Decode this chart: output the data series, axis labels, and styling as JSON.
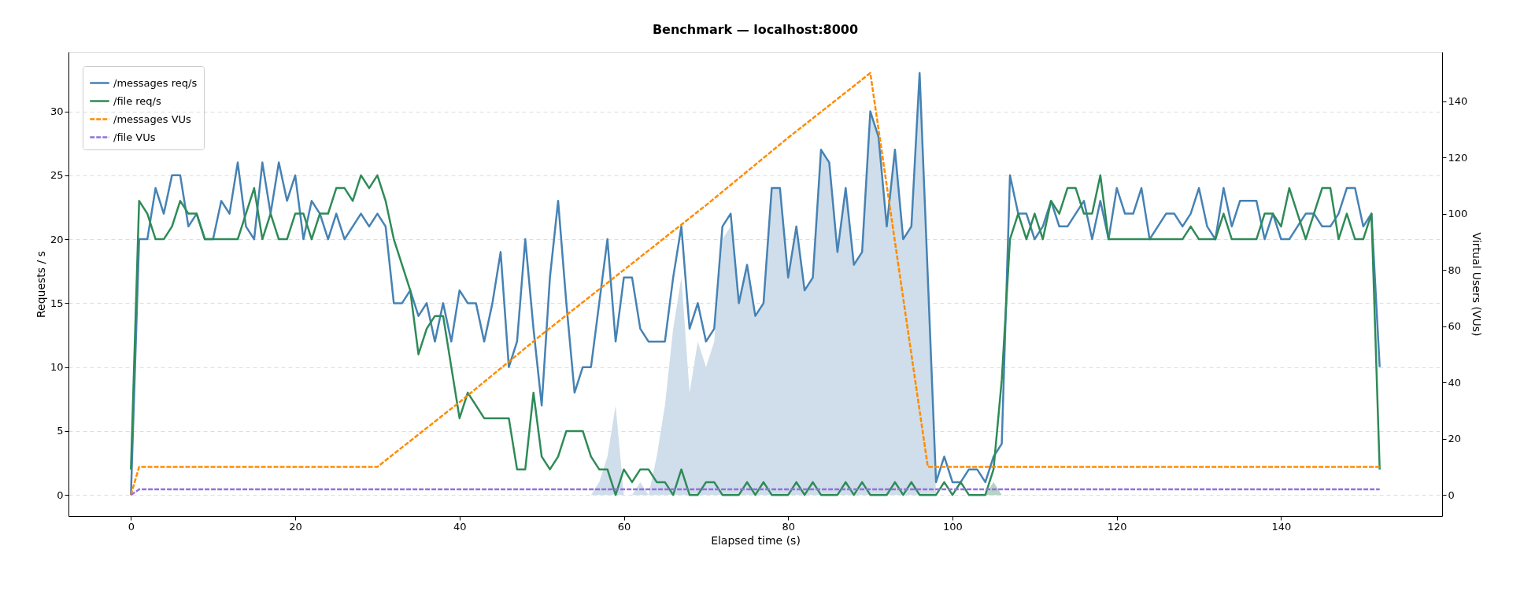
{
  "chart_data": {
    "type": "line",
    "title": "Benchmark — localhost:8000",
    "xlabel": "Elapsed time (s)",
    "ylabel": "Requests / s",
    "y2label": "Virtual Users (VUs)",
    "x": [
      0,
      1,
      2,
      3,
      4,
      5,
      6,
      7,
      8,
      9,
      10,
      11,
      12,
      13,
      14,
      15,
      16,
      17,
      18,
      19,
      20,
      21,
      22,
      23,
      24,
      25,
      26,
      27,
      28,
      29,
      30,
      31,
      32,
      33,
      34,
      35,
      36,
      37,
      38,
      39,
      40,
      41,
      42,
      43,
      44,
      45,
      46,
      47,
      48,
      49,
      50,
      51,
      52,
      53,
      54,
      55,
      56,
      57,
      58,
      59,
      60,
      61,
      62,
      63,
      64,
      65,
      66,
      67,
      68,
      69,
      70,
      71,
      72,
      73,
      74,
      75,
      76,
      77,
      78,
      79,
      80,
      81,
      82,
      83,
      84,
      85,
      86,
      87,
      88,
      89,
      90,
      91,
      92,
      93,
      94,
      95,
      96,
      97,
      98,
      99,
      100,
      101,
      102,
      103,
      104,
      105,
      106,
      107,
      108,
      109,
      110,
      111,
      112,
      113,
      114,
      115,
      116,
      117,
      118,
      119,
      120,
      121,
      122,
      123,
      124,
      125,
      126,
      127,
      128,
      129,
      130,
      131,
      132,
      133,
      134,
      135,
      136,
      137,
      138,
      139,
      140,
      141,
      142,
      143,
      144,
      145,
      146,
      147,
      148,
      149,
      150,
      151,
      152
    ],
    "series": [
      {
        "type": "area",
        "color": "#cfdeea",
        "x": [
          55,
          56,
          57,
          58,
          59,
          60,
          61,
          62,
          63,
          64,
          65,
          66,
          67,
          68,
          69,
          70,
          71,
          72,
          73,
          74,
          75,
          76,
          77,
          78,
          79,
          80,
          81,
          82,
          83,
          84,
          85,
          86,
          87,
          88,
          89,
          90,
          91,
          92,
          93,
          94,
          95,
          96,
          97,
          98,
          99,
          100,
          101,
          102,
          103,
          104,
          105,
          106
        ],
        "values": [
          0,
          0,
          1,
          3,
          7,
          0,
          0,
          1,
          0,
          3,
          7,
          13,
          17,
          8,
          12,
          10,
          12,
          20,
          21,
          15,
          18,
          14,
          15,
          24,
          24,
          17,
          21,
          16,
          17,
          27,
          26,
          19,
          24,
          18,
          19,
          30,
          28,
          21,
          27,
          20,
          21,
          33,
          17,
          0,
          0,
          0,
          0,
          0,
          0,
          0,
          1,
          0
        ]
      },
      {
        "type": "area",
        "color": "#b6d3c3",
        "x": [
          104,
          105,
          106
        ],
        "values": [
          0,
          1,
          0
        ]
      },
      {
        "name": "/messages req/s",
        "color": "#4682b4",
        "line_style": "solid",
        "values": [
          0,
          20,
          20,
          24,
          22,
          25,
          25,
          21,
          22,
          20,
          20,
          23,
          22,
          26,
          21,
          20,
          26,
          22,
          26,
          23,
          25,
          20,
          23,
          22,
          20,
          22,
          20,
          21,
          22,
          21,
          22,
          21,
          15,
          15,
          16,
          14,
          15,
          12,
          15,
          12,
          16,
          15,
          15,
          12,
          15,
          19,
          10,
          12,
          20,
          13,
          7,
          17,
          23,
          15,
          8,
          10,
          10,
          15,
          20,
          12,
          17,
          17,
          13,
          12,
          12,
          12,
          17,
          21,
          13,
          15,
          12,
          13,
          21,
          22,
          15,
          18,
          14,
          15,
          24,
          24,
          17,
          21,
          16,
          17,
          27,
          26,
          19,
          24,
          18,
          19,
          30,
          28,
          21,
          27,
          20,
          21,
          33,
          17,
          1,
          3,
          1,
          1,
          2,
          2,
          1,
          3,
          4,
          25,
          22,
          22,
          20,
          21,
          23,
          21,
          21,
          22,
          23,
          20,
          23,
          20,
          24,
          22,
          22,
          24,
          20,
          21,
          22,
          22,
          21,
          22,
          24,
          21,
          20,
          24,
          21,
          23,
          23,
          23,
          20,
          22,
          20,
          20,
          21,
          22,
          22,
          21,
          21,
          22,
          24,
          24,
          21,
          22,
          10
        ]
      },
      {
        "name": "/file req/s",
        "color": "#2e8b57",
        "line_style": "solid",
        "values": [
          2,
          23,
          22,
          20,
          20,
          21,
          23,
          22,
          22,
          20,
          20,
          20,
          20,
          20,
          22,
          24,
          20,
          22,
          20,
          20,
          22,
          22,
          20,
          22,
          22,
          24,
          24,
          23,
          25,
          24,
          25,
          23,
          20,
          18,
          16,
          11,
          13,
          14,
          14,
          10,
          6,
          8,
          7,
          6,
          6,
          6,
          6,
          2,
          2,
          8,
          3,
          2,
          3,
          5,
          5,
          5,
          3,
          2,
          2,
          0,
          2,
          1,
          2,
          2,
          1,
          1,
          0,
          2,
          0,
          0,
          1,
          1,
          0,
          0,
          0,
          1,
          0,
          1,
          0,
          0,
          0,
          1,
          0,
          1,
          0,
          0,
          0,
          1,
          0,
          1,
          0,
          0,
          0,
          1,
          0,
          1,
          0,
          0,
          0,
          1,
          0,
          1,
          0,
          0,
          0,
          2,
          9,
          20,
          22,
          20,
          22,
          20,
          23,
          22,
          24,
          24,
          22,
          22,
          25,
          20,
          20,
          20,
          20,
          20,
          20,
          20,
          20,
          20,
          20,
          21,
          20,
          20,
          20,
          22,
          20,
          20,
          20,
          20,
          22,
          22,
          21,
          24,
          22,
          20,
          22,
          24,
          24,
          20,
          22,
          20,
          20,
          22,
          2
        ]
      },
      {
        "name": "/messages VUs",
        "color": "#ff8c00",
        "line_style": "dashed",
        "axis": "y2",
        "x": [
          0,
          1,
          30,
          40,
          50,
          60,
          70,
          80,
          90,
          97,
          152
        ],
        "values": [
          0,
          10,
          10,
          33,
          57,
          80,
          103,
          127,
          150,
          10,
          10
        ]
      },
      {
        "name": "/file VUs",
        "color": "#9370db",
        "line_style": "dashed",
        "axis": "y2",
        "x": [
          0,
          1,
          152
        ],
        "values": [
          0,
          2,
          2
        ]
      }
    ],
    "xlim": [
      -7.6,
      159.6
    ],
    "xticks": [
      0,
      20,
      40,
      60,
      80,
      100,
      120,
      140
    ],
    "ylim": [
      -1.65,
      34.65
    ],
    "yticks": [
      0,
      5,
      10,
      15,
      20,
      25,
      30
    ],
    "y2lim": [
      -7.5,
      157.5
    ],
    "y2ticks": [
      0,
      20,
      40,
      60,
      80,
      100,
      120,
      140
    ],
    "grid": "y",
    "legend": "top left",
    "marker": "none"
  }
}
